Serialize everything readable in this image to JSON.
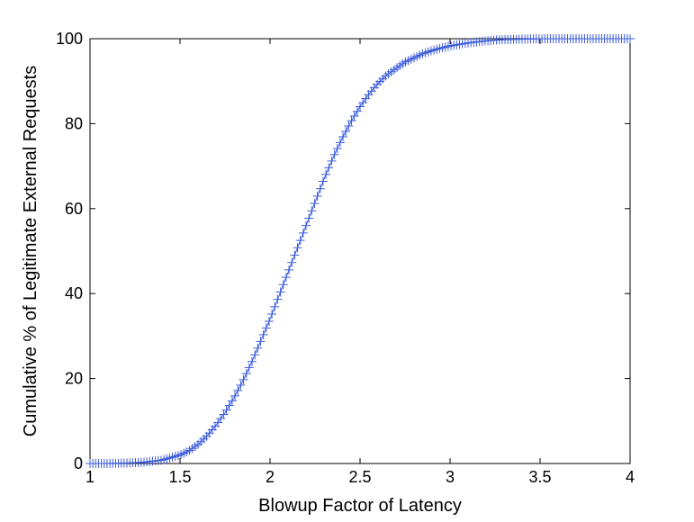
{
  "chart_data": {
    "type": "line",
    "title": "",
    "xlabel": "Blowup Factor of Latency",
    "ylabel": "Cumulative % of Legitimate External Requests",
    "xlim": [
      1,
      4
    ],
    "ylim": [
      0,
      100
    ],
    "x_ticks": [
      "1",
      "1.5",
      "2",
      "2.5",
      "3",
      "3.5",
      "4"
    ],
    "y_ticks": [
      "0",
      "20",
      "40",
      "60",
      "80",
      "100"
    ],
    "x_tick_values": [
      1,
      1.5,
      2,
      2.5,
      3,
      3.5,
      4
    ],
    "y_tick_values": [
      0,
      20,
      40,
      60,
      80,
      100
    ],
    "grid": false,
    "marker": "+",
    "colors": {
      "series": "#3b5bdb",
      "axis": "#000000"
    },
    "series": [
      {
        "x": [
          1.0,
          1.1,
          1.2,
          1.3,
          1.4,
          1.5,
          1.55,
          1.6,
          1.65,
          1.7,
          1.75,
          1.8,
          1.85,
          1.9,
          1.95,
          2.0,
          2.05,
          2.1,
          2.15,
          2.2,
          2.25,
          2.3,
          2.35,
          2.4,
          2.45,
          2.5,
          2.55,
          2.6,
          2.65,
          2.7,
          2.75,
          2.8,
          2.85,
          2.9,
          2.95,
          3.0,
          3.1,
          3.2,
          3.3,
          3.4,
          3.5,
          3.6,
          3.7,
          3.8,
          3.9,
          4.0
        ],
        "y": [
          0,
          0,
          0.1,
          0.3,
          0.8,
          2,
          3,
          4.5,
          6.5,
          9,
          12,
          15.5,
          19.5,
          24,
          29,
          34,
          39.5,
          45,
          50.5,
          56,
          61.5,
          67,
          72,
          76.5,
          80.5,
          84,
          87,
          89.5,
          91.5,
          93,
          94.5,
          95.5,
          96.5,
          97.2,
          97.8,
          98.3,
          99.0,
          99.5,
          99.8,
          99.9,
          100,
          100,
          100,
          100,
          100,
          100
        ]
      }
    ]
  }
}
